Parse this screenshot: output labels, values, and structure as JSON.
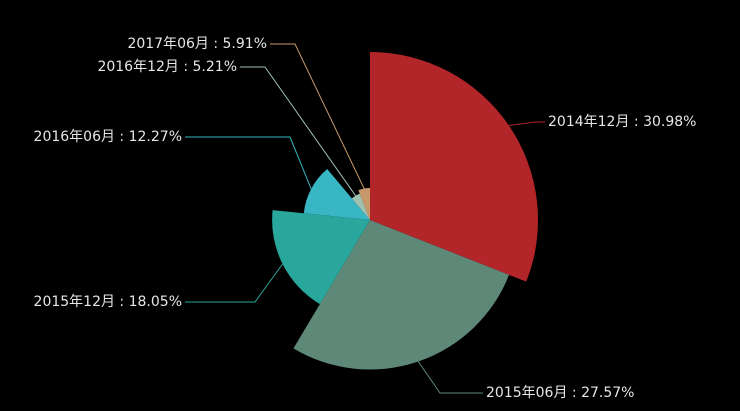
{
  "chart_data": {
    "type": "rose",
    "categories": [
      "2014年12月",
      "2015年06月",
      "2015年12月",
      "2016年06月",
      "2016年12月",
      "2017年06月"
    ],
    "values": [
      30.98,
      27.57,
      18.05,
      12.27,
      5.21,
      5.91
    ],
    "value_labels": [
      "30.98%",
      "27.57%",
      "18.05%",
      "12.27%",
      "5.21%",
      "5.91%"
    ],
    "label_separator": " : ",
    "colors": [
      "#b22529",
      "#5e8877",
      "#2aa79c",
      "#38b6c4",
      "#9fc1b2",
      "#c7996a"
    ]
  }
}
